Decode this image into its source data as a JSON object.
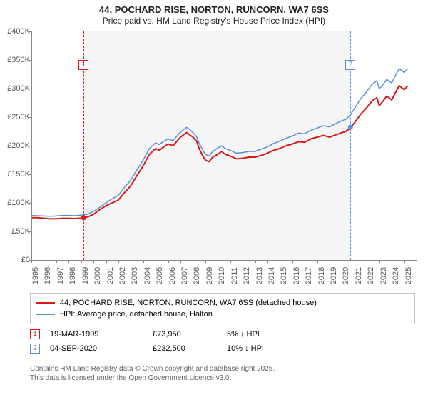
{
  "title_main": "44, POCHARD RISE, NORTON, RUNCORN, WA7 6SS",
  "title_sub": "Price paid vs. HM Land Registry's House Price Index (HPI)",
  "chart": {
    "type": "line",
    "y": {
      "min": 0,
      "max": 400000,
      "step": 50000,
      "labels": [
        "£0",
        "£50K",
        "£100K",
        "£150K",
        "£200K",
        "£250K",
        "£300K",
        "£350K",
        "£400K"
      ]
    },
    "x": {
      "min": 1995,
      "max": 2026,
      "labels": [
        "1995",
        "1996",
        "1997",
        "1998",
        "1999",
        "2000",
        "2001",
        "2002",
        "2003",
        "2004",
        "2005",
        "2006",
        "2007",
        "2008",
        "2009",
        "2010",
        "2011",
        "2012",
        "2013",
        "2014",
        "2015",
        "2016",
        "2017",
        "2018",
        "2019",
        "2020",
        "2021",
        "2022",
        "2023",
        "2024",
        "2025"
      ]
    },
    "shaded_ranges": [
      {
        "from": 1999.2,
        "to": 2020.7
      }
    ],
    "series": [
      {
        "name": "red",
        "color": "#d91818",
        "width": 2,
        "points": [
          [
            1995.0,
            74000
          ],
          [
            1995.5,
            74000
          ],
          [
            1996.0,
            73000
          ],
          [
            1996.5,
            72000
          ],
          [
            1997.0,
            72000
          ],
          [
            1997.5,
            73000
          ],
          [
            1998.0,
            73000
          ],
          [
            1998.5,
            72500
          ],
          [
            1999.0,
            73500
          ],
          [
            1999.2,
            73950
          ],
          [
            1999.6,
            76000
          ],
          [
            2000.0,
            80000
          ],
          [
            2000.5,
            88000
          ],
          [
            2001.0,
            95000
          ],
          [
            2001.5,
            100000
          ],
          [
            2002.0,
            105000
          ],
          [
            2002.5,
            118000
          ],
          [
            2003.0,
            130000
          ],
          [
            2003.5,
            148000
          ],
          [
            2004.0,
            165000
          ],
          [
            2004.5,
            185000
          ],
          [
            2005.0,
            195000
          ],
          [
            2005.3,
            192000
          ],
          [
            2005.6,
            197000
          ],
          [
            2006.0,
            203000
          ],
          [
            2006.4,
            200000
          ],
          [
            2006.8,
            210000
          ],
          [
            2007.0,
            215000
          ],
          [
            2007.5,
            223000
          ],
          [
            2007.8,
            218000
          ],
          [
            2008.0,
            215000
          ],
          [
            2008.3,
            208000
          ],
          [
            2008.5,
            195000
          ],
          [
            2008.8,
            182000
          ],
          [
            2009.0,
            175000
          ],
          [
            2009.3,
            172000
          ],
          [
            2009.6,
            180000
          ],
          [
            2010.0,
            185000
          ],
          [
            2010.3,
            190000
          ],
          [
            2010.6,
            185000
          ],
          [
            2011.0,
            182000
          ],
          [
            2011.5,
            177000
          ],
          [
            2012.0,
            178000
          ],
          [
            2012.5,
            180000
          ],
          [
            2013.0,
            180000
          ],
          [
            2013.5,
            183000
          ],
          [
            2014.0,
            187000
          ],
          [
            2014.5,
            192000
          ],
          [
            2015.0,
            195000
          ],
          [
            2015.5,
            200000
          ],
          [
            2016.0,
            203000
          ],
          [
            2016.5,
            207000
          ],
          [
            2017.0,
            206000
          ],
          [
            2017.5,
            212000
          ],
          [
            2018.0,
            215000
          ],
          [
            2018.5,
            218000
          ],
          [
            2019.0,
            215000
          ],
          [
            2019.5,
            219000
          ],
          [
            2020.0,
            223000
          ],
          [
            2020.3,
            225000
          ],
          [
            2020.5,
            228000
          ],
          [
            2020.7,
            232500
          ],
          [
            2021.0,
            240000
          ],
          [
            2021.5,
            255000
          ],
          [
            2022.0,
            267000
          ],
          [
            2022.4,
            278000
          ],
          [
            2022.8,
            284000
          ],
          [
            2023.0,
            270000
          ],
          [
            2023.3,
            278000
          ],
          [
            2023.6,
            287000
          ],
          [
            2024.0,
            280000
          ],
          [
            2024.3,
            293000
          ],
          [
            2024.6,
            305000
          ],
          [
            2025.0,
            298000
          ],
          [
            2025.3,
            305000
          ]
        ]
      },
      {
        "name": "blue",
        "color": "#5a8fd6",
        "width": 1.5,
        "points": [
          [
            1995.0,
            78000
          ],
          [
            1995.5,
            77500
          ],
          [
            1996.0,
            77000
          ],
          [
            1996.5,
            76500
          ],
          [
            1997.0,
            77000
          ],
          [
            1997.5,
            78000
          ],
          [
            1998.0,
            78000
          ],
          [
            1998.5,
            77500
          ],
          [
            1999.0,
            78500
          ],
          [
            1999.5,
            80000
          ],
          [
            2000.0,
            85000
          ],
          [
            2000.5,
            92000
          ],
          [
            2001.0,
            100000
          ],
          [
            2001.5,
            107000
          ],
          [
            2002.0,
            113000
          ],
          [
            2002.5,
            127000
          ],
          [
            2003.0,
            140000
          ],
          [
            2003.5,
            158000
          ],
          [
            2004.0,
            175000
          ],
          [
            2004.5,
            195000
          ],
          [
            2005.0,
            205000
          ],
          [
            2005.3,
            202000
          ],
          [
            2005.6,
            207000
          ],
          [
            2006.0,
            212000
          ],
          [
            2006.4,
            209000
          ],
          [
            2006.8,
            219000
          ],
          [
            2007.0,
            224000
          ],
          [
            2007.5,
            232000
          ],
          [
            2007.8,
            227000
          ],
          [
            2008.0,
            223000
          ],
          [
            2008.3,
            216000
          ],
          [
            2008.5,
            204000
          ],
          [
            2008.8,
            192000
          ],
          [
            2009.0,
            185000
          ],
          [
            2009.3,
            182000
          ],
          [
            2009.6,
            190000
          ],
          [
            2010.0,
            196000
          ],
          [
            2010.3,
            200000
          ],
          [
            2010.6,
            195000
          ],
          [
            2011.0,
            192000
          ],
          [
            2011.5,
            187000
          ],
          [
            2012.0,
            188000
          ],
          [
            2012.5,
            190000
          ],
          [
            2013.0,
            190000
          ],
          [
            2013.5,
            194000
          ],
          [
            2014.0,
            198000
          ],
          [
            2014.5,
            204000
          ],
          [
            2015.0,
            208000
          ],
          [
            2015.5,
            213000
          ],
          [
            2016.0,
            217000
          ],
          [
            2016.5,
            222000
          ],
          [
            2017.0,
            221000
          ],
          [
            2017.5,
            227000
          ],
          [
            2018.0,
            231000
          ],
          [
            2018.5,
            235000
          ],
          [
            2019.0,
            233000
          ],
          [
            2019.5,
            239000
          ],
          [
            2020.0,
            244000
          ],
          [
            2020.3,
            246000
          ],
          [
            2020.5,
            250000
          ],
          [
            2020.7,
            255000
          ],
          [
            2021.0,
            265000
          ],
          [
            2021.5,
            282000
          ],
          [
            2022.0,
            295000
          ],
          [
            2022.4,
            307000
          ],
          [
            2022.8,
            314000
          ],
          [
            2023.0,
            300000
          ],
          [
            2023.3,
            307000
          ],
          [
            2023.6,
            316000
          ],
          [
            2024.0,
            310000
          ],
          [
            2024.3,
            323000
          ],
          [
            2024.6,
            335000
          ],
          [
            2025.0,
            328000
          ],
          [
            2025.3,
            335000
          ]
        ]
      }
    ],
    "sale_markers": [
      {
        "id": "1",
        "year": 1999.21,
        "price": 73950,
        "color": "#d91818",
        "label_y": 40
      },
      {
        "id": "2",
        "year": 2020.68,
        "price": 232500,
        "color": "#5a8fd6",
        "label_y": 40
      }
    ]
  },
  "legend": {
    "items": [
      {
        "color": "#d91818",
        "width": 2,
        "text": "44, POCHARD RISE, NORTON, RUNCORN, WA7 6SS (detached house)"
      },
      {
        "color": "#5a8fd6",
        "width": 1.5,
        "text": "HPI: Average price, detached house, Halton"
      }
    ]
  },
  "marker_rows": [
    {
      "id": "1",
      "color": "#d91818",
      "date": "19-MAR-1999",
      "price": "£73,950",
      "diff": "5% ↓ HPI"
    },
    {
      "id": "2",
      "color": "#5a8fd6",
      "date": "04-SEP-2020",
      "price": "£232,500",
      "diff": "10% ↓ HPI"
    }
  ],
  "footer": {
    "line1": "Contains HM Land Registry data © Crown copyright and database right 2025.",
    "line2": "This data is licensed under the Open Government Licence v3.0."
  }
}
